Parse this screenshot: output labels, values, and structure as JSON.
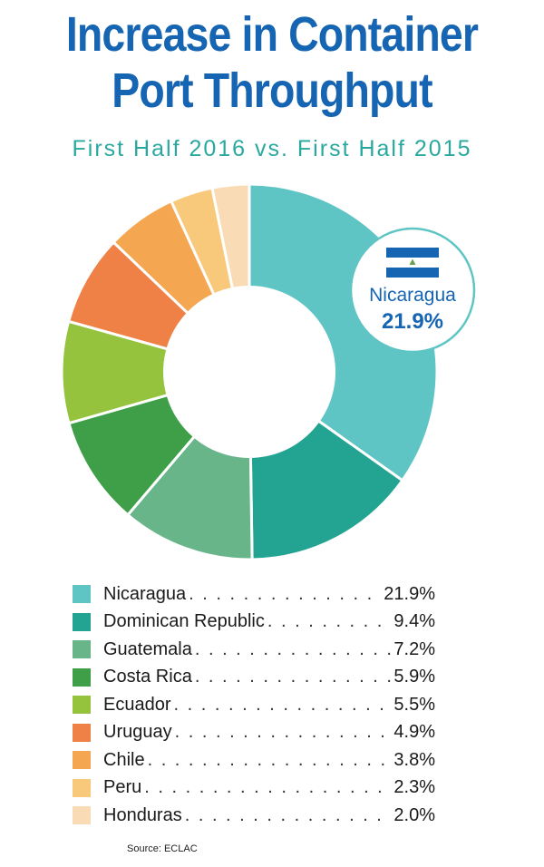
{
  "title": {
    "line1": "Increase in Container",
    "line2": "Port Throughput"
  },
  "subtitle": "First Half 2016 vs. First Half 2015",
  "callout": {
    "label": "Nicaragua",
    "value": "21.9%",
    "icon": "nicaragua-flag-icon"
  },
  "source": "Source: ECLAC",
  "chart_data": {
    "type": "pie",
    "style": "donut",
    "start_angle": "top",
    "direction": "clockwise",
    "categories": [
      "Nicaragua",
      "Dominican Republic",
      "Guatemala",
      "Costa Rica",
      "Ecuador",
      "Uruguay",
      "Chile",
      "Peru",
      "Honduras"
    ],
    "values": [
      21.9,
      9.4,
      7.2,
      5.9,
      5.5,
      4.9,
      3.8,
      2.3,
      2.0
    ],
    "labels": [
      "21.9%",
      "9.4%",
      "7.2%",
      "5.9%",
      "5.5%",
      "4.9%",
      "3.8%",
      "2.3%",
      "2.0%"
    ],
    "colors": [
      "#5fc4c4",
      "#23a493",
      "#68b58a",
      "#3e9f48",
      "#96c33e",
      "#ef8147",
      "#f4a650",
      "#f8c97a",
      "#f9dcb6"
    ],
    "legend": "bottom"
  }
}
